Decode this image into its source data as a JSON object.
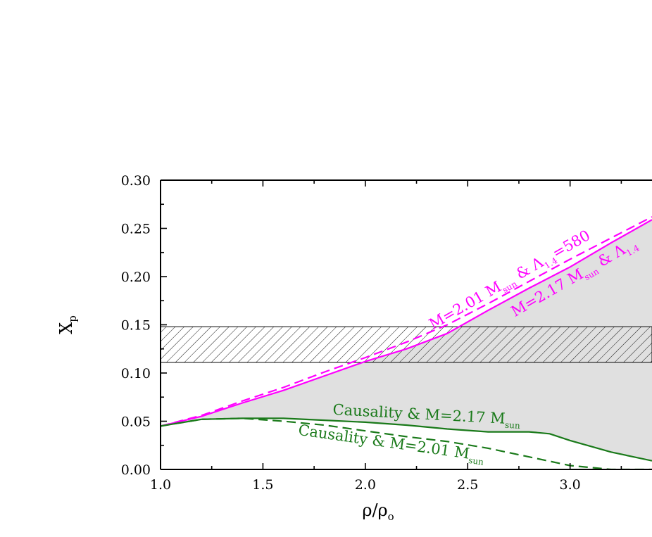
{
  "chart_data": {
    "type": "line",
    "xlabel": {
      "base": "ρ/ρ",
      "sub": "o"
    },
    "ylabel": {
      "base": "X",
      "sub": "p"
    },
    "xlim": [
      1.0,
      3.4
    ],
    "ylim": [
      0.0,
      0.3
    ],
    "x_ticks": [
      "1.0",
      "1.5",
      "2.0",
      "2.5",
      "3.0"
    ],
    "x_tick_values": [
      1.0,
      1.5,
      2.0,
      2.5,
      3.0
    ],
    "y_ticks": [
      "0.00",
      "0.05",
      "0.10",
      "0.15",
      "0.20",
      "0.25",
      "0.30"
    ],
    "y_tick_values": [
      0.0,
      0.05,
      0.1,
      0.15,
      0.2,
      0.25,
      0.3
    ],
    "hatched_band": {
      "y_min": 0.111,
      "y_max": 0.148
    },
    "series": [
      {
        "label": "M=2.17 M_sun & Λ_1.4",
        "color": "#ff00ff",
        "dash": "solid",
        "points": [
          [
            1.0,
            0.045
          ],
          [
            1.2,
            0.055
          ],
          [
            1.4,
            0.069
          ],
          [
            1.6,
            0.082
          ],
          [
            1.8,
            0.097
          ],
          [
            2.0,
            0.112
          ],
          [
            2.2,
            0.125
          ],
          [
            2.4,
            0.141
          ],
          [
            2.6,
            0.165
          ],
          [
            2.8,
            0.188
          ],
          [
            3.0,
            0.21
          ],
          [
            3.2,
            0.235
          ],
          [
            3.4,
            0.259
          ]
        ]
      },
      {
        "label": "M=2.01 M_sun & Λ_1.4=580",
        "color": "#ff00ff",
        "dash": "dashed",
        "points": [
          [
            1.0,
            0.045
          ],
          [
            1.2,
            0.056
          ],
          [
            1.4,
            0.071
          ],
          [
            1.6,
            0.085
          ],
          [
            1.8,
            0.101
          ],
          [
            2.0,
            0.116
          ],
          [
            2.2,
            0.132
          ],
          [
            2.4,
            0.15
          ],
          [
            2.6,
            0.172
          ],
          [
            2.8,
            0.195
          ],
          [
            3.0,
            0.218
          ],
          [
            3.2,
            0.24
          ],
          [
            3.4,
            0.262
          ]
        ]
      },
      {
        "label": "Causality & M=2.17 M_sun",
        "color": "#1a7a1a",
        "dash": "solid",
        "points": [
          [
            1.0,
            0.045
          ],
          [
            1.2,
            0.052
          ],
          [
            1.4,
            0.053
          ],
          [
            1.6,
            0.053
          ],
          [
            1.8,
            0.051
          ],
          [
            2.0,
            0.049
          ],
          [
            2.2,
            0.046
          ],
          [
            2.4,
            0.042
          ],
          [
            2.6,
            0.039
          ],
          [
            2.8,
            0.039
          ],
          [
            2.9,
            0.037
          ],
          [
            3.0,
            0.03
          ],
          [
            3.2,
            0.018
          ],
          [
            3.4,
            0.009
          ]
        ]
      },
      {
        "label": "Causality & M=2.01 M_sun",
        "color": "#1a7a1a",
        "dash": "dashed",
        "points": [
          [
            1.0,
            0.045
          ],
          [
            1.2,
            0.052
          ],
          [
            1.4,
            0.053
          ],
          [
            1.6,
            0.05
          ],
          [
            1.8,
            0.046
          ],
          [
            2.0,
            0.04
          ],
          [
            2.2,
            0.034
          ],
          [
            2.4,
            0.029
          ],
          [
            2.6,
            0.022
          ],
          [
            2.8,
            0.013
          ],
          [
            3.0,
            0.004
          ],
          [
            3.2,
            0.0
          ],
          [
            3.4,
            0.0
          ]
        ]
      }
    ],
    "shaded_region": {
      "color": "#e0e0e0",
      "between": [
        "M=2.17 M_sun & Λ_1.4",
        "Causality & M=2.17 M_sun"
      ]
    },
    "annotations": [
      {
        "id": "m201",
        "parts": [
          "M=2.01 M",
          "sun",
          " & Λ",
          "1.4",
          "=580"
        ],
        "color": "#ff00ff",
        "x": 2.33,
        "y": 0.145,
        "angle": -30
      },
      {
        "id": "m217",
        "parts": [
          "M=2.17 M",
          "sun",
          " & Λ",
          "1.4"
        ],
        "color": "#ff00ff",
        "x": 2.73,
        "y": 0.158,
        "angle": -30
      },
      {
        "id": "c217",
        "parts": [
          "Causality & M=2.17 M",
          "sun"
        ],
        "color": "#1a7a1a",
        "x": 1.84,
        "y": 0.057,
        "angle": 3
      },
      {
        "id": "c201",
        "parts": [
          "Causality & M=2.01 M",
          "sun"
        ],
        "color": "#1a7a1a",
        "x": 1.67,
        "y": 0.036,
        "angle": 8
      }
    ]
  }
}
